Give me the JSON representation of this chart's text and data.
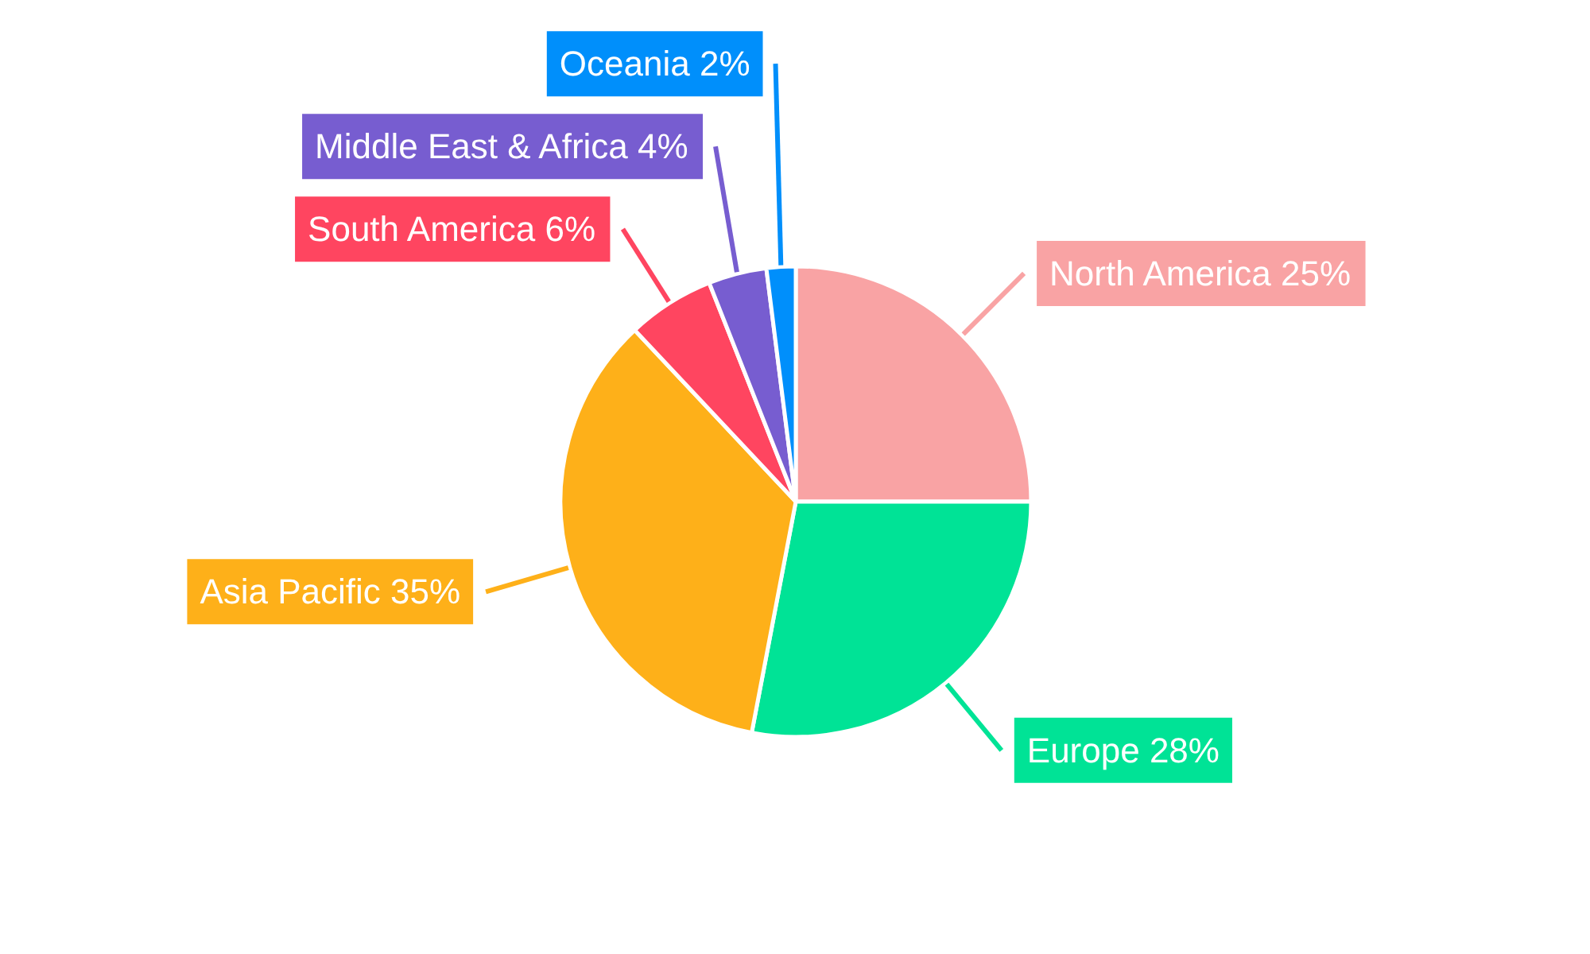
{
  "chart_data": {
    "type": "pie",
    "categories": [
      "North America",
      "Europe",
      "Asia Pacific",
      "South America",
      "Middle East & Africa",
      "Oceania"
    ],
    "values": [
      25,
      28,
      35,
      6,
      4,
      2
    ],
    "colors": [
      "#f9a3a4",
      "#00e396",
      "#feb019",
      "#ff4560",
      "#775dd0",
      "#008ffb"
    ],
    "value_labels": [
      "25%",
      "28%",
      "35%",
      "6%",
      "4%",
      "2%"
    ]
  }
}
